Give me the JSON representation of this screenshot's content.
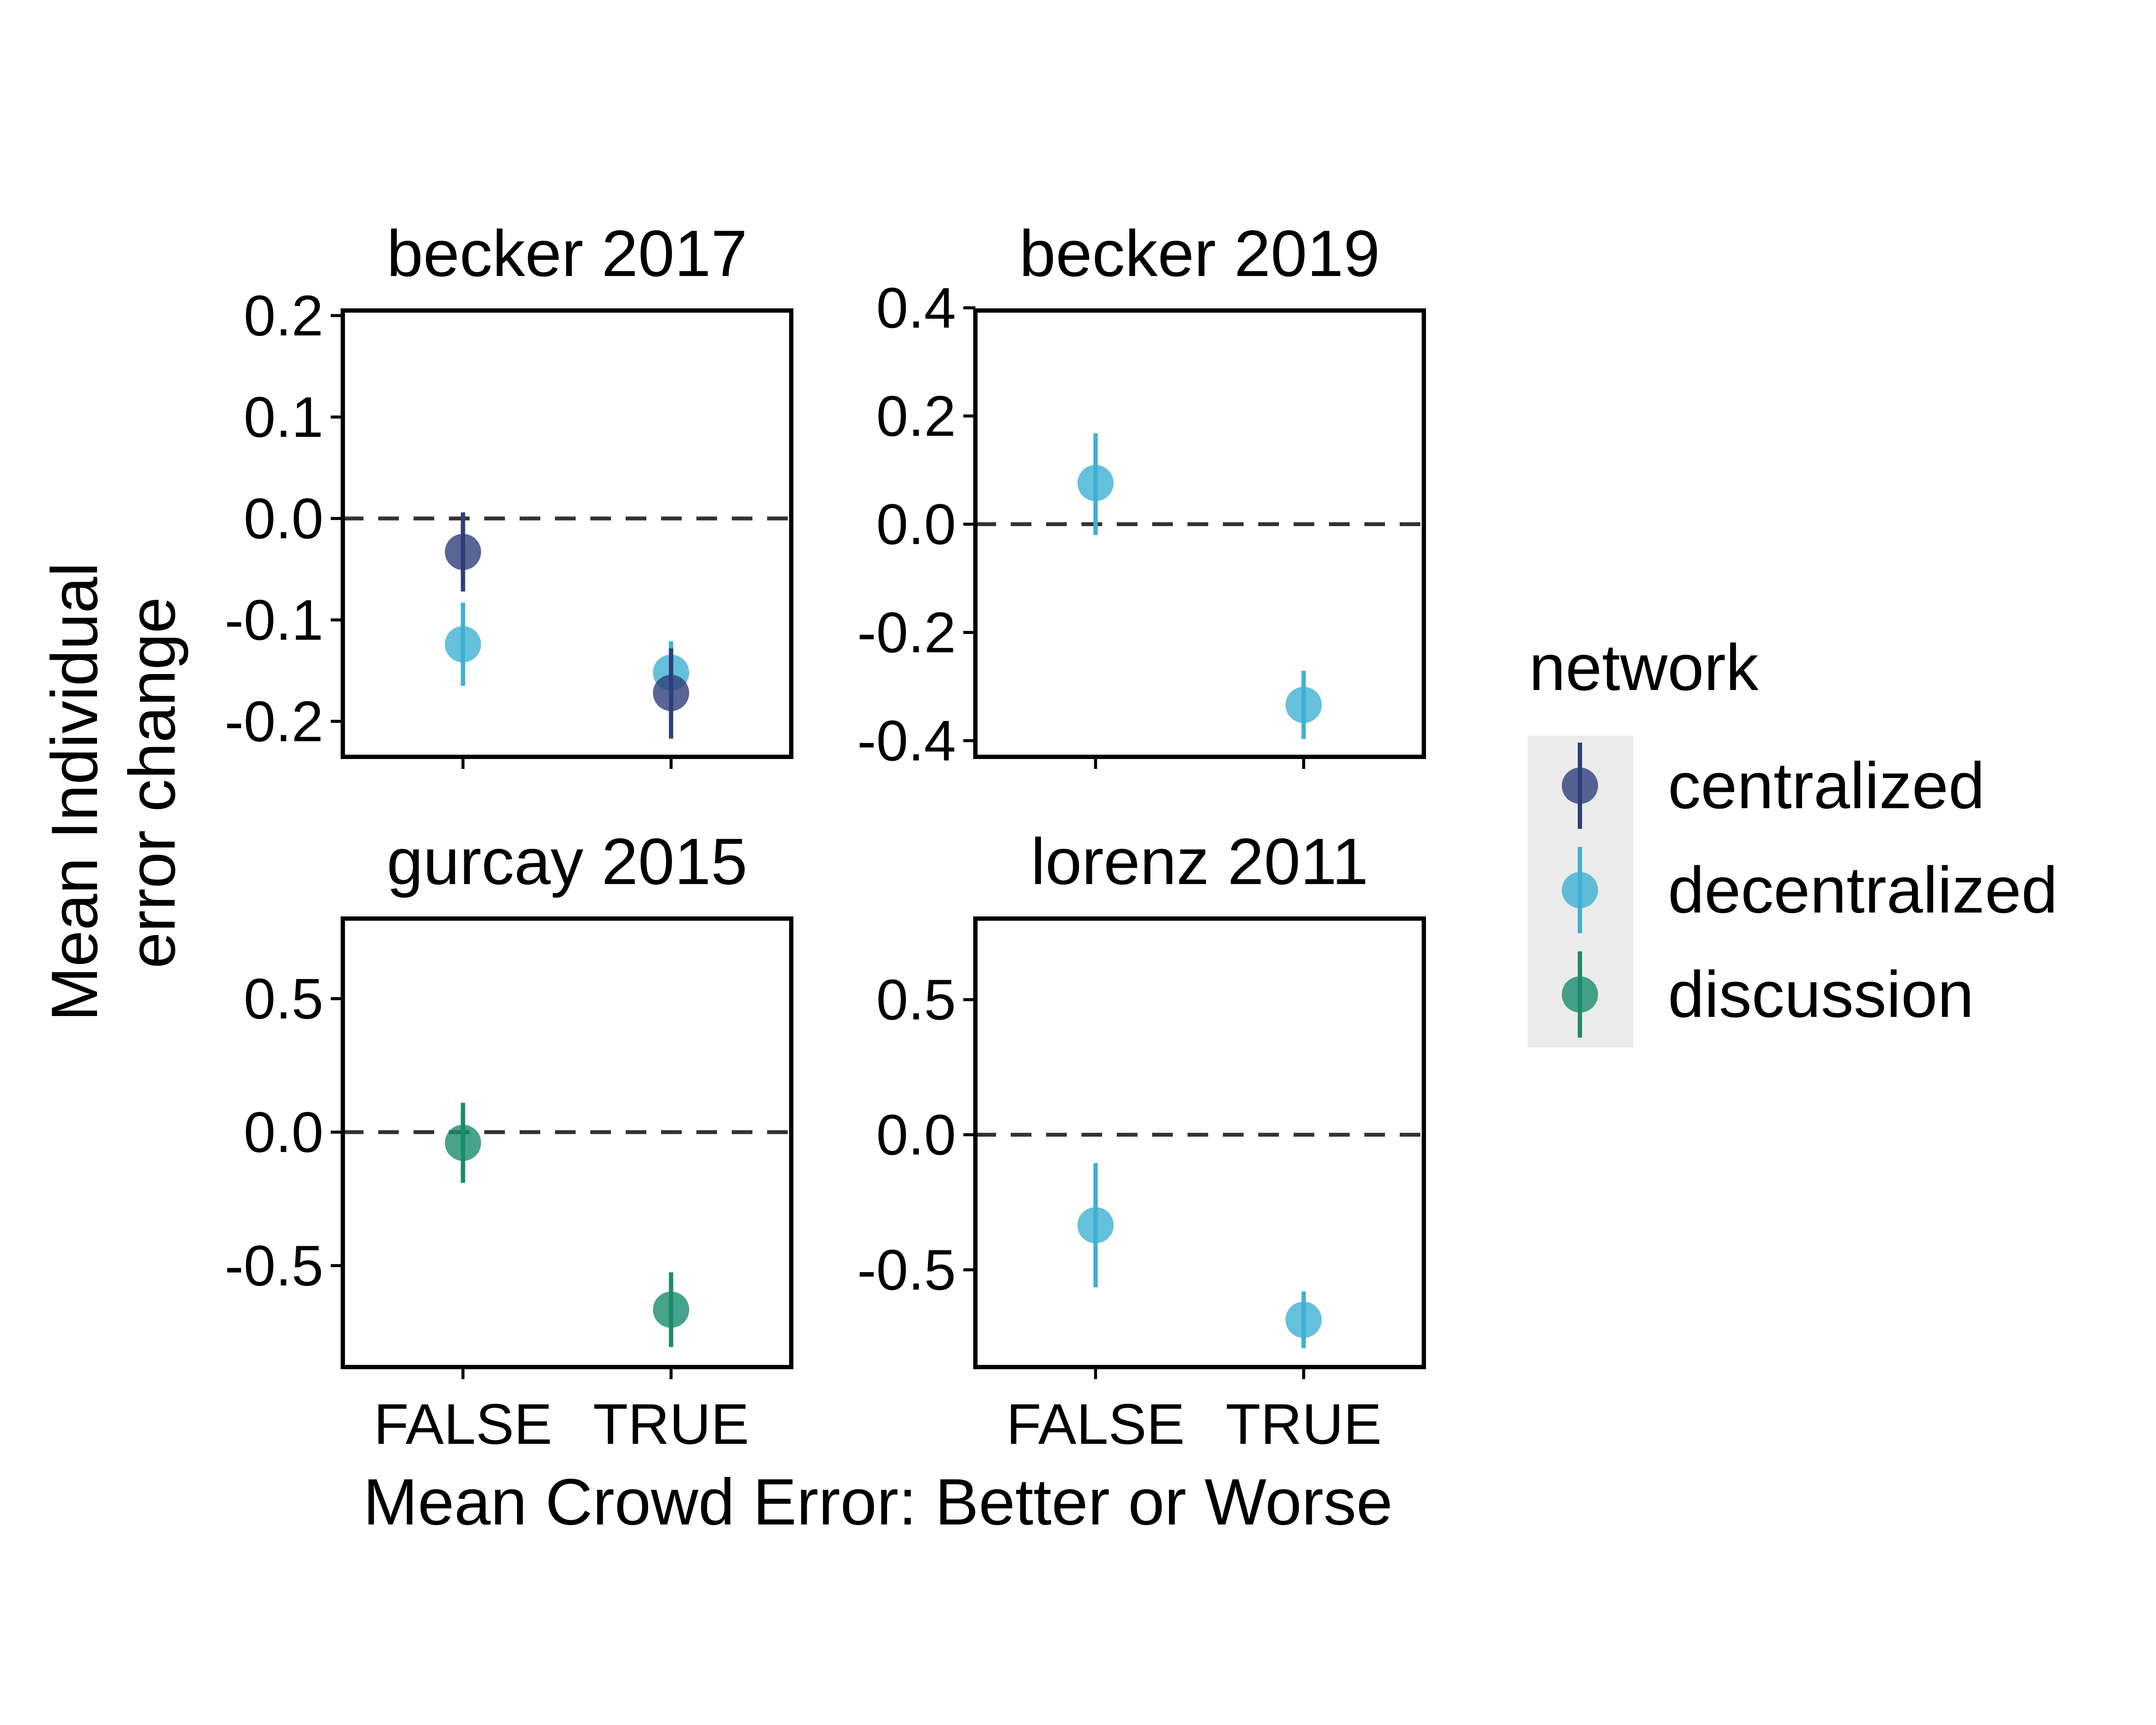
{
  "chart_data": {
    "type": "scatter",
    "subtype": "faceted point-range plot with error bars",
    "xlabel": "Mean Crowd Error: Better or Worse",
    "ylabel_lines": [
      "Mean Individual",
      "error change"
    ],
    "categories": [
      "FALSE",
      "TRUE"
    ],
    "reference_line": {
      "y": 0,
      "style": "dashed"
    },
    "legend": {
      "title": "network",
      "position": "right",
      "entries": [
        {
          "name": "centralized",
          "color": "#2e3f7a"
        },
        {
          "name": "decentralized",
          "color": "#3fb0d2"
        },
        {
          "name": "discussion",
          "color": "#198c6b"
        }
      ]
    },
    "panels": [
      {
        "title": "becker 2017",
        "ylim": [
          -0.235,
          0.205
        ],
        "yticks": [
          0.2,
          0.1,
          0.0,
          -0.1,
          -0.2
        ],
        "ytick_labels": [
          "0.2",
          "0.1",
          "0.0",
          "-0.1",
          "-0.2"
        ],
        "show_x_labels": false,
        "points": [
          {
            "series": "centralized",
            "x": "FALSE",
            "y": -0.033,
            "lower": -0.072,
            "upper": 0.006
          },
          {
            "series": "decentralized",
            "x": "FALSE",
            "y": -0.124,
            "lower": -0.165,
            "upper": -0.083
          },
          {
            "series": "decentralized",
            "x": "TRUE",
            "y": -0.152,
            "lower": -0.184,
            "upper": -0.121
          },
          {
            "series": "centralized",
            "x": "TRUE",
            "y": -0.172,
            "lower": -0.217,
            "upper": -0.128
          }
        ]
      },
      {
        "title": "becker 2019",
        "ylim": [
          -0.43,
          0.395
        ],
        "yticks": [
          0.4,
          0.2,
          0.0,
          -0.2,
          -0.4
        ],
        "ytick_labels": [
          "0.4",
          "0.2",
          "0.0",
          "-0.2",
          "-0.4"
        ],
        "show_x_labels": false,
        "points": [
          {
            "series": "decentralized",
            "x": "FALSE",
            "y": 0.076,
            "lower": -0.02,
            "upper": 0.168
          },
          {
            "series": "decentralized",
            "x": "TRUE",
            "y": -0.334,
            "lower": -0.397,
            "upper": -0.271
          }
        ]
      },
      {
        "title": "gurcay 2015",
        "ylim": [
          -0.88,
          0.8
        ],
        "yticks": [
          0.5,
          0.0,
          -0.5
        ],
        "ytick_labels": [
          "0.5",
          "0.0",
          "-0.5"
        ],
        "show_x_labels": true,
        "points": [
          {
            "series": "discussion",
            "x": "FALSE",
            "y": -0.04,
            "lower": -0.19,
            "upper": 0.11
          },
          {
            "series": "discussion",
            "x": "TRUE",
            "y": -0.665,
            "lower": -0.805,
            "upper": -0.525
          }
        ]
      },
      {
        "title": "lorenz 2011",
        "ylim": [
          -0.86,
          0.8
        ],
        "yticks": [
          0.5,
          0.0,
          -0.5
        ],
        "ytick_labels": [
          "0.5",
          "0.0",
          "-0.5"
        ],
        "show_x_labels": true,
        "points": [
          {
            "series": "decentralized",
            "x": "FALSE",
            "y": -0.335,
            "lower": -0.565,
            "upper": -0.105
          },
          {
            "series": "decentralized",
            "x": "TRUE",
            "y": -0.685,
            "lower": -0.79,
            "upper": -0.58
          }
        ]
      }
    ]
  }
}
